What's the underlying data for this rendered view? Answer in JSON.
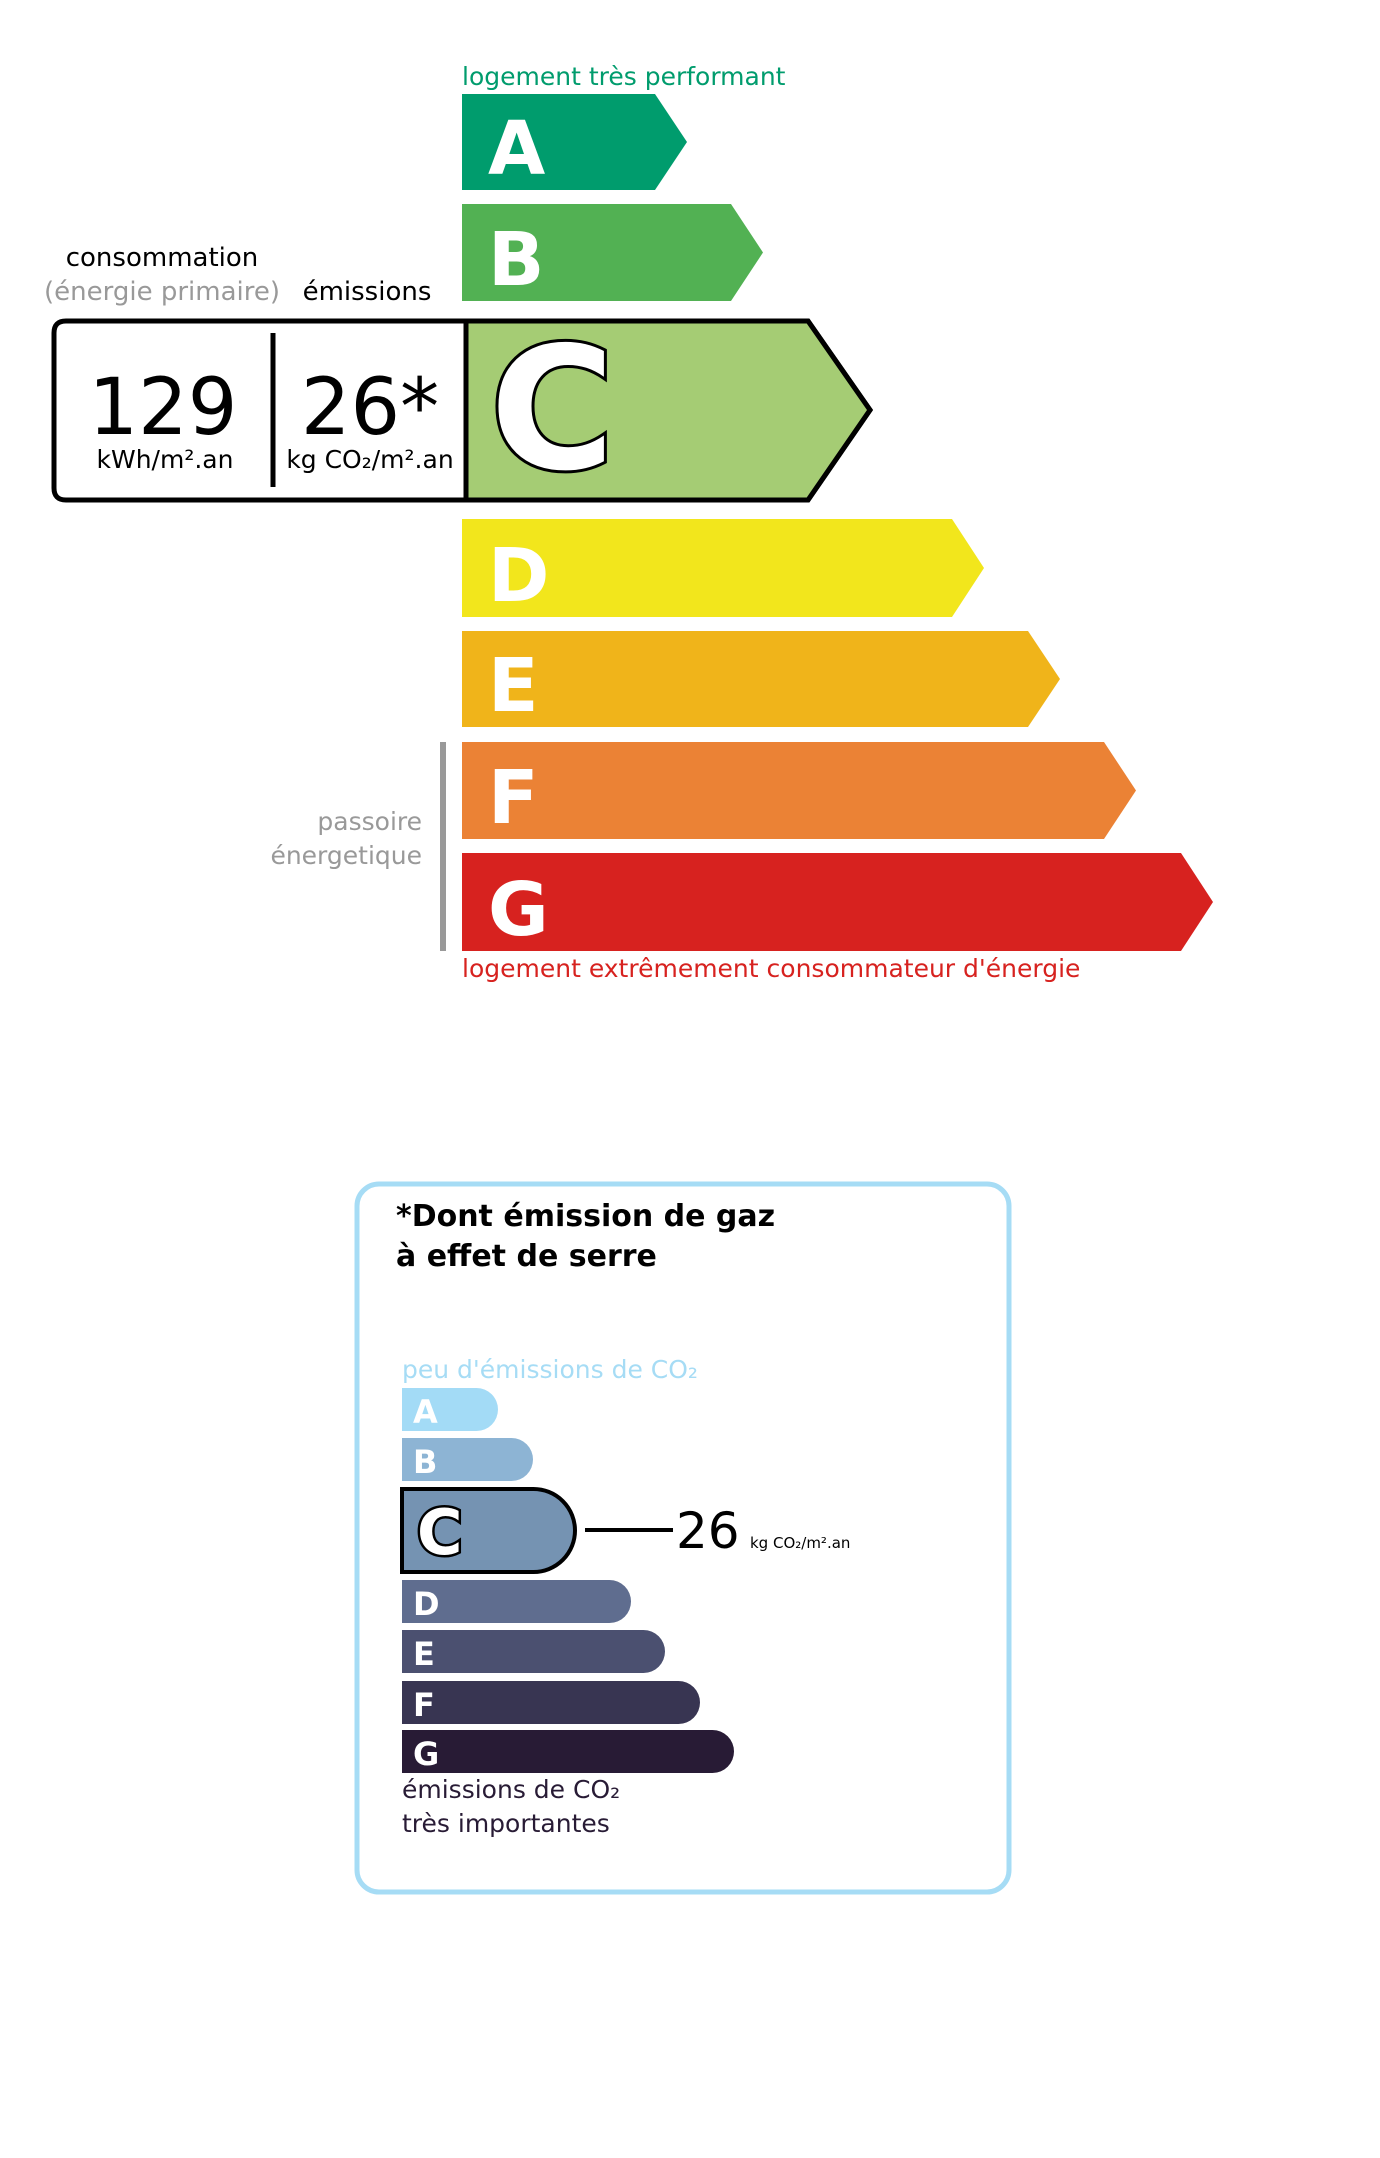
{
  "energy_label": {
    "top_caption": "logement très performant",
    "bottom_caption": "logement extrêmement consommateur d'énergie",
    "passoire_line1": "passoire",
    "passoire_line2": "énergetique",
    "classes": [
      {
        "letter": "A",
        "color": "#009c6d"
      },
      {
        "letter": "B",
        "color": "#52b153"
      },
      {
        "letter": "C",
        "color": "#a5cc74"
      },
      {
        "letter": "D",
        "color": "#f2e61c"
      },
      {
        "letter": "E",
        "color": "#f0b41a"
      },
      {
        "letter": "F",
        "color": "#eb8235"
      },
      {
        "letter": "G",
        "color": "#d7221f"
      }
    ],
    "active_class": "C",
    "consumption_header": "consommation",
    "consumption_subheader": "(énergie primaire)",
    "emissions_header": "émissions",
    "consumption_value": "129",
    "consumption_unit": "kWh/m².an",
    "emissions_value": "26*",
    "emissions_unit": "kg CO₂/m².an"
  },
  "ges_label": {
    "title_line1": "*Dont émission de gaz",
    "title_line2": "à effet de serre",
    "top_caption": "peu d'émissions de CO₂",
    "bottom_caption_line1": "émissions de CO₂",
    "bottom_caption_line2": "très importantes",
    "border_color": "#a6dcf5",
    "classes": [
      {
        "letter": "A",
        "color": "#a3dbf6"
      },
      {
        "letter": "B",
        "color": "#8db4d4"
      },
      {
        "letter": "C",
        "color": "#7593b2"
      },
      {
        "letter": "D",
        "color": "#5f6d8f"
      },
      {
        "letter": "E",
        "color": "#4b5070"
      },
      {
        "letter": "F",
        "color": "#383552"
      },
      {
        "letter": "G",
        "color": "#281b35"
      }
    ],
    "active_class": "C",
    "value": "26",
    "unit": "kg CO₂/m².an"
  }
}
